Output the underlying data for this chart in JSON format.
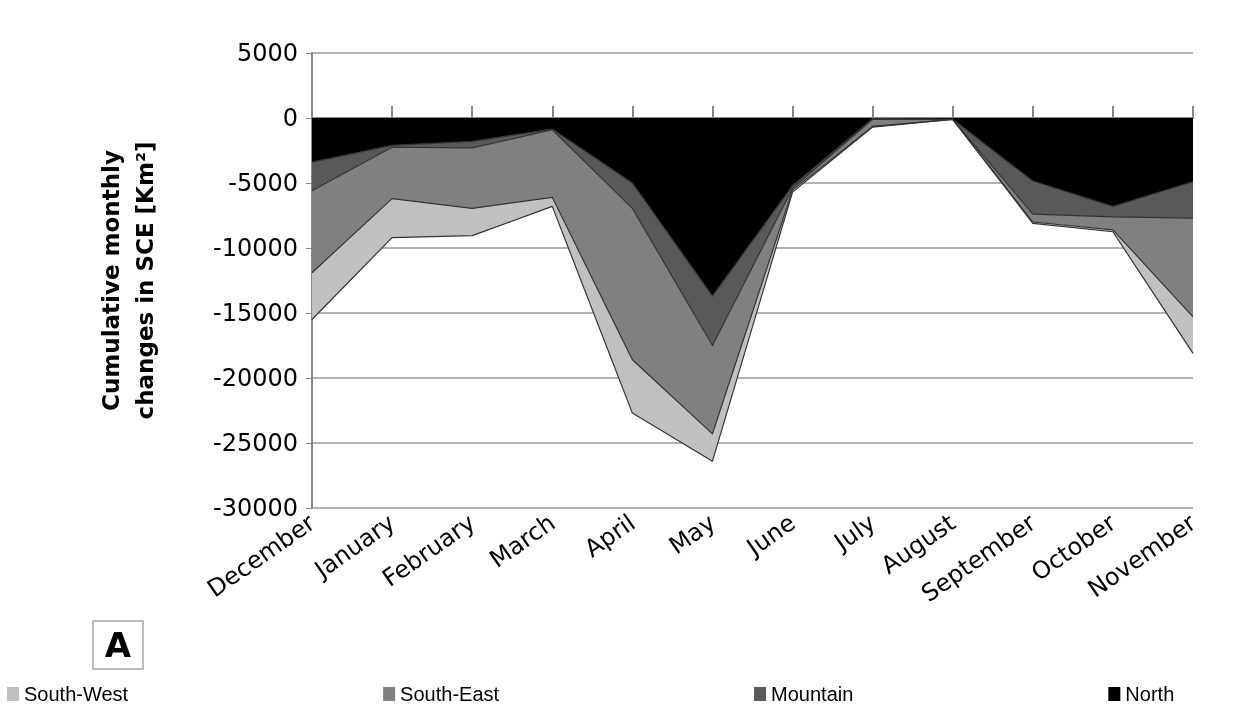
{
  "chart_data": {
    "type": "area",
    "stacked": true,
    "ylabel": "Cumulative monthly changes in SCE [Km²]",
    "categories": [
      "December",
      "January",
      "February",
      "March",
      "April",
      "May",
      "June",
      "July",
      "August",
      "September",
      "October",
      "November"
    ],
    "series": [
      {
        "name": "North",
        "color": "#000000",
        "values": [
          -3400,
          -2100,
          -1800,
          -850,
          -5000,
          -13700,
          -5200,
          -50,
          -100,
          -4850,
          -6800,
          -4900
        ]
      },
      {
        "name": "Mountain",
        "color": "#595959",
        "values": [
          -2200,
          -150,
          -500,
          -50,
          -1950,
          -3800,
          -200,
          -50,
          0,
          -2550,
          -800,
          -2800
        ]
      },
      {
        "name": "South-East",
        "color": "#808080",
        "values": [
          -6300,
          -3950,
          -4650,
          -5200,
          -11650,
          -6800,
          -150,
          -550,
          0,
          -600,
          -1000,
          -7600
        ]
      },
      {
        "name": "South-West",
        "color": "#c0c0c0",
        "values": [
          -3600,
          -3000,
          -2100,
          -700,
          -4100,
          -2100,
          -150,
          -50,
          0,
          -100,
          -150,
          -2800
        ]
      }
    ],
    "ylim": [
      -30000,
      5000
    ],
    "yticks": [
      -30000,
      -25000,
      -20000,
      -15000,
      -10000,
      -5000,
      0,
      5000
    ],
    "grid": "y",
    "legend": "bottom",
    "marker": "none",
    "annotations": [
      "A"
    ]
  }
}
